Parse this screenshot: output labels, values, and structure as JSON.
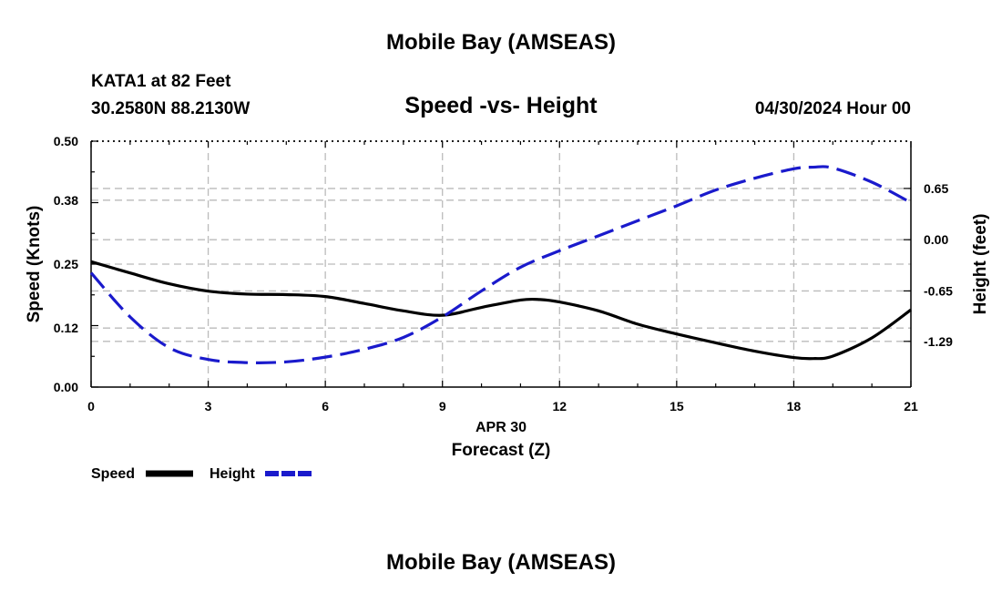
{
  "header": {
    "title": "Mobile Bay (AMSEAS)",
    "station": "KATA1 at 82 Feet",
    "coords": "30.2580N  88.2130W",
    "date": "04/30/2024 Hour 00"
  },
  "footer": {
    "title": "Mobile Bay (AMSEAS)"
  },
  "colors": {
    "speed": "#000000",
    "height": "#1a1acc",
    "grid": "#bbbbbb"
  },
  "chart_data": {
    "type": "line",
    "title": "Speed -vs- Height",
    "xlabel": "Forecast (Z)",
    "date_label": "APR 30",
    "ylabel": "Speed (Knots)",
    "y2label": "Height (feet)",
    "xlim": [
      0,
      21
    ],
    "ylim": [
      0,
      0.5
    ],
    "y2lim": [
      -1.87,
      1.25
    ],
    "x_ticks": [
      "0",
      "3",
      "6",
      "9",
      "12",
      "15",
      "18",
      "21"
    ],
    "y_ticks": [
      "0.00",
      "0.12",
      "0.25",
      "0.38",
      "0.50"
    ],
    "y2_ticks": [
      "-1.29",
      "-0.65",
      "0.00",
      "0.65"
    ],
    "grid": true,
    "series": [
      {
        "name": "Speed",
        "axis": "left",
        "style": "solid",
        "x": [
          0,
          1,
          2,
          3,
          4,
          5,
          6,
          7,
          8,
          9,
          10,
          11,
          11.5,
          12,
          13,
          14,
          15,
          16,
          17,
          18,
          18.5,
          19,
          20,
          21
        ],
        "y": [
          0.255,
          0.232,
          0.21,
          0.195,
          0.189,
          0.188,
          0.184,
          0.17,
          0.155,
          0.146,
          0.162,
          0.177,
          0.178,
          0.173,
          0.155,
          0.128,
          0.108,
          0.09,
          0.073,
          0.06,
          0.058,
          0.063,
          0.1,
          0.157
        ]
      },
      {
        "name": "Height",
        "axis": "right",
        "style": "dashed",
        "x": [
          0,
          1,
          2,
          3,
          4,
          5,
          6,
          7,
          8,
          9,
          10,
          11,
          12,
          13,
          14,
          15,
          16,
          17,
          18,
          18.5,
          19,
          20,
          21
        ],
        "y": [
          -0.42,
          -0.98,
          -1.37,
          -1.52,
          -1.56,
          -1.55,
          -1.49,
          -1.39,
          -1.24,
          -0.98,
          -0.65,
          -0.35,
          -0.14,
          0.05,
          0.24,
          0.43,
          0.63,
          0.78,
          0.9,
          0.92,
          0.91,
          0.73,
          0.47
        ]
      }
    ],
    "legend": [
      {
        "label": "Speed",
        "style": "solid"
      },
      {
        "label": "Height",
        "style": "dashed"
      }
    ]
  }
}
